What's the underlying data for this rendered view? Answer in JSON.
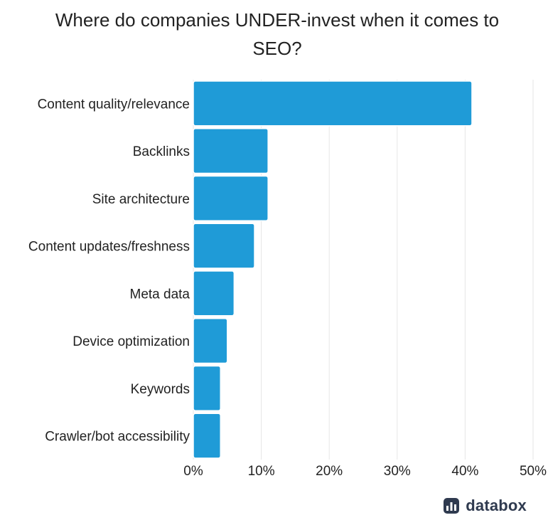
{
  "chart_data": {
    "type": "bar",
    "orientation": "horizontal",
    "title": "Where do companies UNDER-invest when it comes to SEO?",
    "xlabel": "",
    "ylabel": "",
    "categories": [
      "Content quality/relevance",
      "Backlinks",
      "Site architecture",
      "Content updates/freshness",
      "Meta data",
      "Device optimization",
      "Keywords",
      "Crawler/bot accessibility"
    ],
    "values": [
      41,
      11,
      11,
      9,
      6,
      5,
      4,
      4
    ],
    "value_unit": "%",
    "xlim": [
      0,
      50
    ],
    "x_ticks": [
      "0%",
      "10%",
      "20%",
      "30%",
      "40%",
      "50%"
    ],
    "x_tick_values": [
      0,
      10,
      20,
      30,
      40,
      50
    ],
    "grid": true,
    "bar_color": "#1f9bd7"
  },
  "brand": {
    "name": "databox",
    "icon": "bar-chart-logo-icon",
    "color": "#2f3a4f"
  }
}
